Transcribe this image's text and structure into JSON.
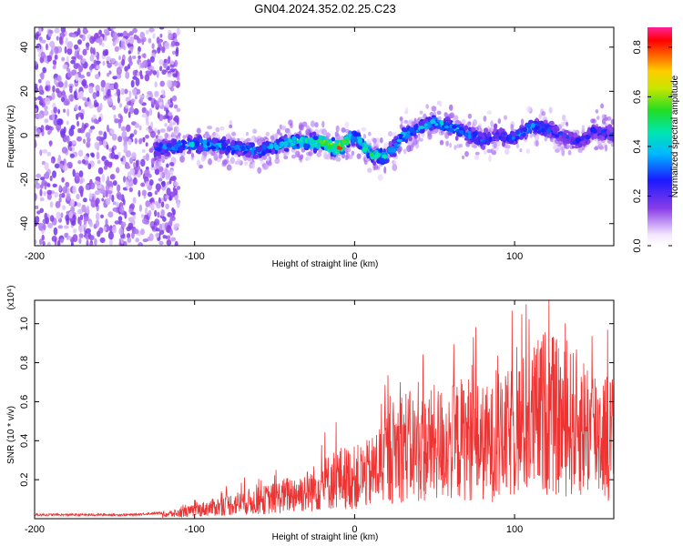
{
  "title": "GN04.2024.352.02.25.C23",
  "chart_data": [
    {
      "type": "heatmap",
      "xlabel": "Height of straight line (km)",
      "ylabel": "Frequency (Hz)",
      "xlim": [
        -200,
        162
      ],
      "ylim": [
        -50,
        49
      ],
      "x_ticks": [
        -200,
        -100,
        0,
        100
      ],
      "y_ticks": [
        -40,
        -20,
        0,
        20,
        40
      ],
      "colorbar": {
        "label": "Normalized spectral amplitude",
        "range": [
          0.0,
          0.88
        ],
        "ticks": [
          0.0,
          0.2,
          0.4,
          0.6,
          0.8
        ]
      },
      "ridge_profile": {
        "x": [
          -125,
          -100,
          -80,
          -60,
          -40,
          -20,
          -10,
          0,
          10,
          20,
          30,
          40,
          50,
          60,
          70,
          80,
          90,
          100,
          110,
          120,
          130,
          140,
          150,
          162
        ],
        "freq": [
          -6,
          -4,
          -5,
          -7,
          -3,
          -3,
          -6,
          0,
          -8,
          -10,
          0,
          3,
          6,
          4,
          1,
          -2,
          0,
          -1,
          4,
          3,
          0,
          -3,
          2,
          0
        ],
        "peak_amplitude": [
          0.35,
          0.45,
          0.4,
          0.38,
          0.5,
          0.65,
          0.85,
          0.5,
          0.6,
          0.45,
          0.45,
          0.4,
          0.45,
          0.45,
          0.4,
          0.35,
          0.3,
          0.35,
          0.4,
          0.35,
          0.3,
          0.3,
          0.3,
          0.3
        ]
      }
    },
    {
      "type": "line",
      "xlabel": "Height of straight line (km)",
      "ylabel": "SNR (10 * v/v)",
      "y_multiplier": "(x10⁴)",
      "xlim": [
        -200,
        162
      ],
      "ylim": [
        0,
        1.12
      ],
      "x_ticks": [
        -200,
        -100,
        0,
        100
      ],
      "y_ticks": [
        0.2,
        0.4,
        0.6,
        0.8,
        1.0
      ],
      "line_color": "#ee3333",
      "series": [
        {
          "x": [
            -200,
            -180,
            -160,
            -140,
            -120,
            -110,
            -100,
            -90,
            -80,
            -70,
            -60,
            -50,
            -40,
            -30,
            -20,
            -10,
            0,
            10,
            20,
            30,
            40,
            50,
            60,
            70,
            80,
            90,
            100,
            110,
            120,
            130,
            140,
            150,
            160
          ],
          "y": [
            0.02,
            0.02,
            0.02,
            0.02,
            0.03,
            0.04,
            0.06,
            0.08,
            0.1,
            0.12,
            0.13,
            0.15,
            0.18,
            0.2,
            0.25,
            0.3,
            0.3,
            0.33,
            0.45,
            0.55,
            0.5,
            0.55,
            0.55,
            0.6,
            0.55,
            0.55,
            0.65,
            0.7,
            0.8,
            0.7,
            0.7,
            0.65,
            0.6
          ]
        }
      ]
    }
  ]
}
